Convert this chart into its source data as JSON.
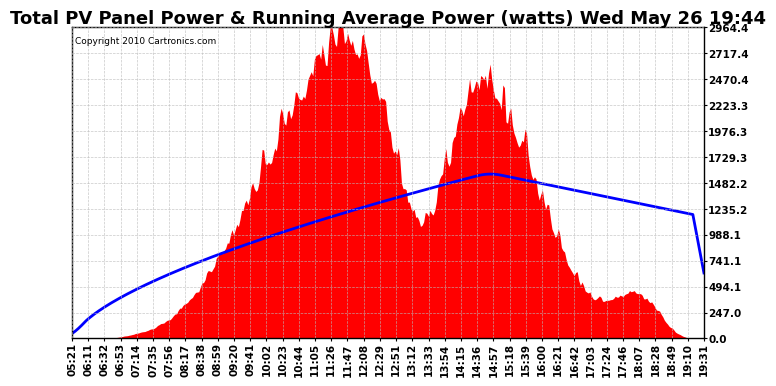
{
  "title": "Total PV Panel Power & Running Average Power (watts) Wed May 26 19:44",
  "copyright": "Copyright 2010 Cartronics.com",
  "background_color": "#ffffff",
  "plot_bg_color": "#ffffff",
  "y_max": 2964.4,
  "y_ticks": [
    0.0,
    247.0,
    494.1,
    741.1,
    988.1,
    1235.2,
    1482.2,
    1729.3,
    1976.3,
    2223.3,
    2470.4,
    2717.4,
    2964.4
  ],
  "x_labels": [
    "05:21",
    "06:11",
    "06:32",
    "06:53",
    "07:14",
    "07:35",
    "07:56",
    "08:17",
    "08:38",
    "08:59",
    "09:20",
    "09:41",
    "10:02",
    "10:23",
    "10:44",
    "11:05",
    "11:26",
    "11:47",
    "12:08",
    "12:29",
    "12:51",
    "13:12",
    "13:33",
    "13:54",
    "14:15",
    "14:36",
    "14:57",
    "15:18",
    "15:39",
    "16:00",
    "16:21",
    "16:42",
    "17:03",
    "17:24",
    "17:46",
    "18:07",
    "18:28",
    "18:49",
    "19:10",
    "19:31"
  ],
  "fill_color": "#ff0000",
  "line_color": "#0000ff",
  "grid_color": "#bbbbbb",
  "title_fontsize": 13,
  "axis_fontsize": 7.5
}
